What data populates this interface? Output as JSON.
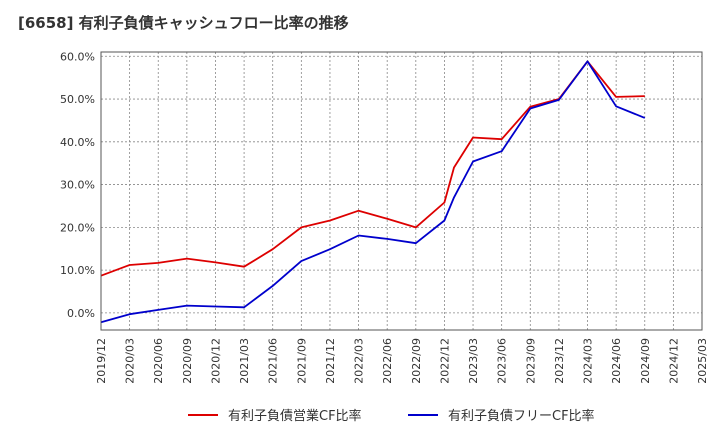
{
  "chart_data": {
    "type": "line",
    "title": "[6658]  有利子負債キャッシュフロー比率の推移",
    "xlabel": "",
    "ylabel": "",
    "ylim": [
      -4,
      61
    ],
    "y_ticks": [
      "0.0%",
      "10.0%",
      "20.0%",
      "30.0%",
      "40.0%",
      "50.0%",
      "60.0%"
    ],
    "y_tick_values": [
      0,
      10,
      20,
      30,
      40,
      50,
      60
    ],
    "x_ticks": [
      "2019/12",
      "2020/03",
      "2020/06",
      "2020/09",
      "2020/12",
      "2021/03",
      "2021/06",
      "2021/09",
      "2021/12",
      "2022/03",
      "2022/06",
      "2022/09",
      "2022/12",
      "2023/03",
      "2023/06",
      "2023/09",
      "2023/12",
      "2024/03",
      "2024/06",
      "2024/09",
      "2024/12",
      "2025/03"
    ],
    "grid": true,
    "legend_position": "bottom",
    "series": [
      {
        "name": "有利子負債営業CF比率",
        "color": "#dd0000",
        "x": [
          "2019/12",
          "2020/03",
          "2020/06",
          "2020/09",
          "2020/12",
          "2021/03",
          "2021/06",
          "2021/09",
          "2021/12",
          "2022/03",
          "2022/06",
          "2022/09",
          "2022/12",
          "2023/01",
          "2023/03",
          "2023/06",
          "2023/09",
          "2023/12",
          "2024/03",
          "2024/06",
          "2024/09"
        ],
        "values": [
          8.7,
          11.2,
          11.7,
          12.7,
          11.8,
          10.8,
          14.9,
          20.0,
          21.6,
          23.9,
          22.0,
          20.0,
          25.8,
          34.0,
          41.0,
          40.6,
          48.2,
          50.0,
          58.8,
          50.5,
          50.7
        ]
      },
      {
        "name": "有利子負債フリーCF比率",
        "color": "#0000cc",
        "x": [
          "2019/12",
          "2020/03",
          "2020/06",
          "2020/09",
          "2020/12",
          "2021/03",
          "2021/06",
          "2021/09",
          "2021/12",
          "2022/03",
          "2022/06",
          "2022/09",
          "2022/12",
          "2023/01",
          "2023/03",
          "2023/06",
          "2023/09",
          "2023/12",
          "2024/03",
          "2024/06",
          "2024/09"
        ],
        "values": [
          -2.2,
          -0.3,
          0.7,
          1.7,
          1.5,
          1.3,
          6.3,
          12.1,
          14.9,
          18.1,
          17.3,
          16.3,
          21.6,
          27.0,
          35.4,
          37.8,
          47.8,
          49.8,
          58.8,
          48.3,
          45.6
        ]
      }
    ]
  }
}
